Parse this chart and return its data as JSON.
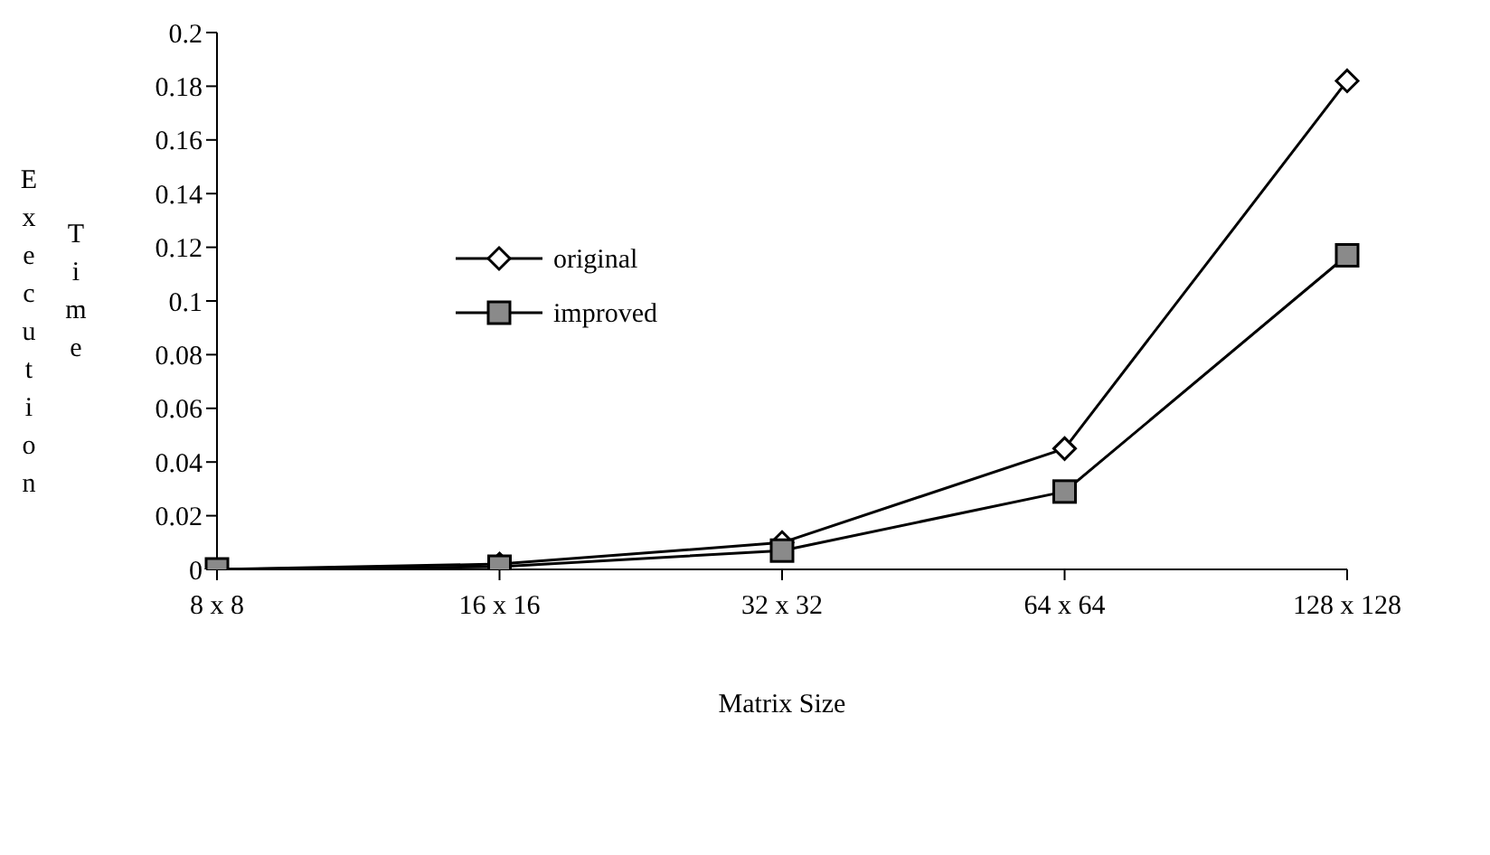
{
  "chart_data": {
    "type": "line",
    "xlabel": "Matrix Size",
    "ylabel": "Execution Time",
    "categories": [
      "8 x 8",
      "16 x 16",
      "32 x 32",
      "64 x 64",
      "128 x 128"
    ],
    "series": [
      {
        "name": "original",
        "color": "#000000",
        "marker": "diamond",
        "values": [
          0,
          0.002,
          0.01,
          0.045,
          0.182
        ]
      },
      {
        "name": "improved",
        "color": "#000000",
        "marker": "square",
        "values": [
          0,
          0.001,
          0.007,
          0.029,
          0.117
        ]
      }
    ],
    "ylim": [
      0,
      0.2
    ],
    "yticks": [
      0,
      0.02,
      0.04,
      0.06,
      0.08,
      0.1,
      0.12,
      0.14,
      0.16,
      0.18,
      0.2
    ],
    "grid": false,
    "legend": "top left",
    "line_style": "solid"
  }
}
